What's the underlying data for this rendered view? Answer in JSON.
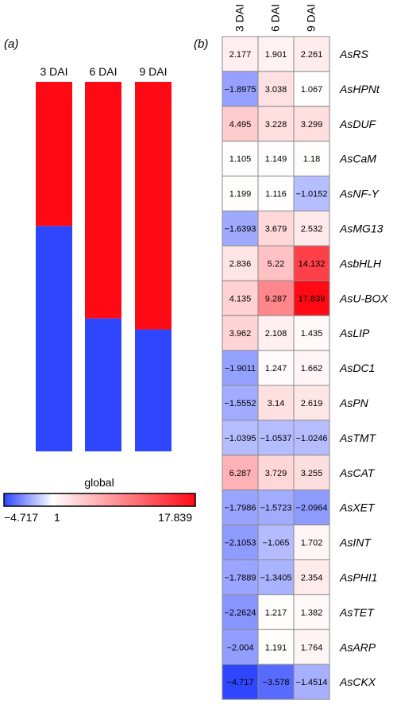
{
  "panel_a_label": "(a)",
  "panel_b_label": "(b)",
  "colors": {
    "low": "#2f46ff",
    "mid": "#ffffff",
    "high": "#ff0a14",
    "grid": "#8a8a8a"
  },
  "chart_data": [
    {
      "type": "bar",
      "stacked": true,
      "orientation": "vertical",
      "categories": [
        "3 DAI",
        "6 DAI",
        "9 DAI"
      ],
      "series": [
        {
          "color": "#2f46ff",
          "values": [
            0.61,
            0.36,
            0.33
          ]
        },
        {
          "color": "#ff0a14",
          "values": [
            0.39,
            0.64,
            0.67
          ]
        }
      ],
      "title": "",
      "xlabel": "",
      "ylabel": "",
      "ylim": [
        0,
        1
      ]
    },
    {
      "type": "heatmap",
      "columns": [
        "3 DAI",
        "6 DAI",
        "9 DAI"
      ],
      "rows": [
        "AsRS",
        "AsHPNt",
        "AsDUF",
        "AsCaM",
        "AsNF-Y",
        "AsMG13",
        "AsbHLH",
        "AsU-BOX",
        "AsLIP",
        "AsDC1",
        "AsPN",
        "AsTMT",
        "AsCAT",
        "AsXET",
        "AsINT",
        "AsPHI1",
        "AsTET",
        "AsARP",
        "AsCKX"
      ],
      "values": [
        [
          "2.177",
          "1.901",
          "2.261"
        ],
        [
          "-1.8975",
          "3.038",
          "1.067"
        ],
        [
          "4.495",
          "3.228",
          "3.299"
        ],
        [
          "1.105",
          "1.149",
          "1.18"
        ],
        [
          "1.199",
          "1.116",
          "-1.0152"
        ],
        [
          "-1.6393",
          "3.679",
          "2.532"
        ],
        [
          "2.836",
          "5.22",
          "14.132"
        ],
        [
          "4.135",
          "9.287",
          "17.839"
        ],
        [
          "3.962",
          "2.108",
          "1.435"
        ],
        [
          "-1.9011",
          "1.247",
          "1.662"
        ],
        [
          "-1.5552",
          "3.14",
          "2.619"
        ],
        [
          "-1.0395",
          "-1.0537",
          "-1.0246"
        ],
        [
          "6.287",
          "3.729",
          "3.255"
        ],
        [
          "-1.7986",
          "-1.5723",
          "-2.0964"
        ],
        [
          "-2.1053",
          "-1.065",
          "1.702"
        ],
        [
          "-1.7889",
          "-1.3405",
          "2.354"
        ],
        [
          "-2.2624",
          "1.217",
          "1.382"
        ],
        [
          "-2.004",
          "1.191",
          "1.764"
        ],
        [
          "-4.717",
          "-3.578",
          "-1.4514"
        ]
      ],
      "color_scale": {
        "title": "global",
        "min": -4.717,
        "mid": 1,
        "max": 17.839,
        "min_label": "-4.717",
        "mid_label": "1",
        "max_label": "17.839"
      }
    }
  ]
}
